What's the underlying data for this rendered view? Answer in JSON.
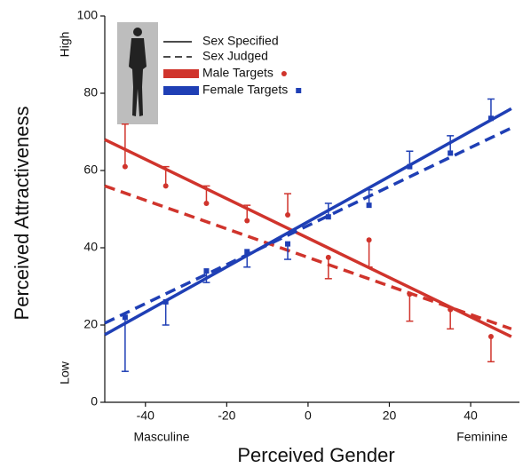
{
  "chart_data": {
    "type": "line",
    "y_label": "Perceived Attractiveness",
    "x_label": "Perceived Gender",
    "y_low_label": "Low",
    "y_high_label": "High",
    "x_left_label": "Masculine",
    "x_right_label": "Feminine",
    "xlim": [
      -50,
      52
    ],
    "ylim": [
      0,
      100
    ],
    "xticks": [
      -40,
      -20,
      0,
      20,
      40
    ],
    "yticks": [
      0,
      20,
      40,
      60,
      80,
      100
    ],
    "line_styles": [
      "Sex Specified",
      "Sex Judged"
    ],
    "groups": [
      {
        "name": "Male Targets",
        "color": "#d0342c",
        "marker": "circle",
        "x": [
          -45,
          -35,
          -25,
          -15,
          -5,
          5,
          15,
          25,
          35,
          45
        ],
        "values": [
          61,
          56,
          51.5,
          47,
          48.5,
          37.5,
          42,
          28,
          24,
          17
        ],
        "error_ends": [
          72,
          61,
          56,
          51,
          54,
          32,
          35,
          21,
          19,
          10.5
        ],
        "fit_specified": {
          "x": [
            -50,
            50
          ],
          "values": [
            68,
            17
          ]
        },
        "fit_judged": {
          "x": [
            -50,
            50
          ],
          "values": [
            56,
            19
          ]
        }
      },
      {
        "name": "Female Targets",
        "color": "#1f3fb5",
        "marker": "square",
        "x": [
          -45,
          -35,
          -25,
          -15,
          -5,
          5,
          15,
          25,
          35,
          45
        ],
        "values": [
          22,
          26,
          34,
          39,
          41,
          48,
          51,
          61,
          64.5,
          73.5
        ],
        "error_ends": [
          8,
          20,
          31,
          35,
          37,
          51.5,
          55,
          65,
          69,
          78.5
        ],
        "fit_specified": {
          "x": [
            -50,
            50
          ],
          "values": [
            17.5,
            76
          ]
        },
        "fit_judged": {
          "x": [
            -50,
            50
          ],
          "values": [
            20.5,
            71
          ]
        }
      }
    ]
  }
}
